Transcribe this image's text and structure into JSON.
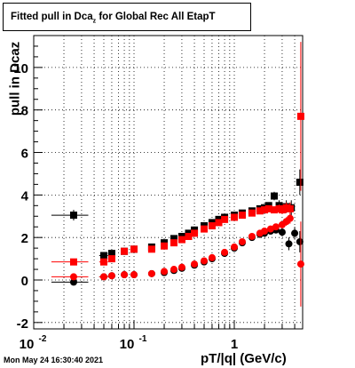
{
  "title": {
    "text": "Fitted pull in Dca",
    "sub": "z",
    "suffix": " for Global Rec All EtapT"
  },
  "datestamp": "Mon May 24 16:30:40 2021",
  "colors": {
    "series_black": "#000000",
    "series_red": "#ff0000",
    "grid": "#000000"
  },
  "chart_data": {
    "type": "scatter",
    "title": "Fitted pull in Dcaz for Global Rec All EtapT",
    "xlabel": "pT/|q| (GeV/c)",
    "ylabel": "pull in Dcaz",
    "xscale": "log",
    "xlim": [
      0.01,
      4.8
    ],
    "ylim": [
      -2.3,
      11.5
    ],
    "grid": true,
    "x_ticks": [
      {
        "value": 0.01,
        "base": "10",
        "exp": "-2"
      },
      {
        "value": 0.1,
        "base": "10",
        "exp": "-1"
      },
      {
        "value": 1,
        "base": "1",
        "exp": ""
      }
    ],
    "y_ticks": [
      -2,
      0,
      2,
      4,
      6,
      8,
      10
    ],
    "series": [
      {
        "marker": "square",
        "color": "#000000",
        "x": [
          0.025,
          0.05,
          0.06,
          0.08,
          0.1,
          0.15,
          0.2,
          0.25,
          0.3,
          0.35,
          0.4,
          0.5,
          0.6,
          0.7,
          0.8,
          1.0,
          1.2,
          1.5,
          1.8,
          2.0,
          2.2,
          2.5,
          2.8,
          3.0,
          3.3,
          3.7,
          4.5
        ],
        "y": [
          3.05,
          1.15,
          1.25,
          1.35,
          1.45,
          1.55,
          1.75,
          1.95,
          2.05,
          2.2,
          2.35,
          2.55,
          2.7,
          2.85,
          2.95,
          3.05,
          3.15,
          3.25,
          3.35,
          3.4,
          3.5,
          3.95,
          3.5,
          3.4,
          3.45,
          3.4,
          4.6
        ],
        "xerr": [
          0.01,
          0.005,
          0.005,
          0.005,
          0.005,
          0.01,
          0.01,
          0.01,
          0.01,
          0.01,
          0.01,
          0.02,
          0.02,
          0.02,
          0.02,
          0.03,
          0.03,
          0.05,
          0.05,
          0.05,
          0.05,
          0.05,
          0.05,
          0.05,
          0.05,
          0.1,
          0.1
        ],
        "yerr": [
          0.25,
          0.1,
          0.1,
          0.08,
          0.08,
          0.06,
          0.06,
          0.06,
          0.06,
          0.06,
          0.06,
          0.06,
          0.06,
          0.08,
          0.08,
          0.08,
          0.1,
          0.1,
          0.12,
          0.12,
          0.15,
          0.2,
          0.25,
          0.25,
          0.3,
          0.35,
          0.6
        ]
      },
      {
        "marker": "circle",
        "color": "#000000",
        "x": [
          0.025,
          0.05,
          0.06,
          0.08,
          0.1,
          0.15,
          0.2,
          0.25,
          0.3,
          0.4,
          0.5,
          0.6,
          0.8,
          1.0,
          1.2,
          1.5,
          1.8,
          2.0,
          2.3,
          2.6,
          3.0,
          3.5,
          4.0,
          4.5
        ],
        "y": [
          -0.1,
          0.15,
          0.2,
          0.25,
          0.25,
          0.3,
          0.35,
          0.45,
          0.55,
          0.7,
          0.85,
          1.0,
          1.25,
          1.5,
          1.75,
          2.0,
          2.15,
          2.2,
          2.3,
          2.35,
          2.25,
          1.7,
          2.2,
          1.8
        ],
        "xerr": [
          0.01,
          0.005,
          0.005,
          0.005,
          0.005,
          0.01,
          0.01,
          0.01,
          0.01,
          0.01,
          0.02,
          0.02,
          0.02,
          0.03,
          0.03,
          0.05,
          0.05,
          0.05,
          0.05,
          0.05,
          0.05,
          0.1,
          0.1,
          0.1
        ],
        "yerr": [
          0.1,
          0.05,
          0.05,
          0.05,
          0.05,
          0.04,
          0.04,
          0.04,
          0.04,
          0.04,
          0.04,
          0.05,
          0.05,
          0.05,
          0.06,
          0.08,
          0.1,
          0.1,
          0.12,
          0.15,
          0.2,
          0.3,
          0.3,
          0.5
        ]
      },
      {
        "marker": "square",
        "color": "#ff0000",
        "x": [
          0.025,
          0.05,
          0.06,
          0.08,
          0.1,
          0.15,
          0.2,
          0.25,
          0.3,
          0.35,
          0.4,
          0.5,
          0.6,
          0.7,
          0.8,
          1.0,
          1.2,
          1.5,
          1.8,
          2.0,
          2.2,
          2.5,
          2.8,
          3.0,
          3.3,
          3.6,
          4.6
        ],
        "y": [
          0.85,
          0.85,
          1.0,
          1.35,
          1.45,
          1.45,
          1.6,
          1.75,
          1.9,
          2.05,
          2.2,
          2.4,
          2.55,
          2.7,
          2.85,
          2.95,
          3.05,
          3.15,
          3.25,
          3.3,
          3.35,
          3.3,
          3.35,
          3.3,
          3.4,
          3.35,
          7.7
        ],
        "xerr": [
          0.01,
          0.005,
          0.005,
          0.005,
          0.005,
          0.01,
          0.01,
          0.01,
          0.01,
          0.01,
          0.01,
          0.02,
          0.02,
          0.02,
          0.02,
          0.03,
          0.03,
          0.05,
          0.05,
          0.05,
          0.05,
          0.05,
          0.05,
          0.05,
          0.05,
          0.1,
          0.1
        ],
        "yerr": [
          0.1,
          0.1,
          0.1,
          0.08,
          0.08,
          0.06,
          0.06,
          0.06,
          0.06,
          0.06,
          0.06,
          0.06,
          0.06,
          0.08,
          0.08,
          0.08,
          0.1,
          0.1,
          0.12,
          0.12,
          0.15,
          0.15,
          0.2,
          0.2,
          0.25,
          0.3,
          3.5
        ]
      },
      {
        "marker": "circle",
        "color": "#ff0000",
        "x": [
          0.025,
          0.05,
          0.06,
          0.08,
          0.1,
          0.15,
          0.2,
          0.25,
          0.3,
          0.4,
          0.5,
          0.6,
          0.8,
          1.0,
          1.2,
          1.5,
          1.8,
          2.0,
          2.3,
          2.6,
          3.0,
          3.3,
          3.6,
          4.6
        ],
        "y": [
          0.15,
          0.15,
          0.2,
          0.25,
          0.25,
          0.3,
          0.4,
          0.5,
          0.6,
          0.75,
          0.9,
          1.05,
          1.3,
          1.55,
          1.8,
          2.05,
          2.2,
          2.3,
          2.4,
          2.5,
          2.6,
          2.75,
          2.9,
          0.75
        ],
        "xerr": [
          0.01,
          0.005,
          0.005,
          0.005,
          0.005,
          0.01,
          0.01,
          0.01,
          0.01,
          0.01,
          0.02,
          0.02,
          0.02,
          0.03,
          0.03,
          0.05,
          0.05,
          0.05,
          0.05,
          0.05,
          0.05,
          0.05,
          0.1,
          0.1
        ],
        "yerr": [
          0.08,
          0.05,
          0.05,
          0.05,
          0.05,
          0.04,
          0.04,
          0.04,
          0.04,
          0.04,
          0.04,
          0.05,
          0.05,
          0.05,
          0.06,
          0.08,
          0.1,
          0.1,
          0.12,
          0.15,
          0.15,
          0.2,
          0.25,
          2.0
        ]
      }
    ]
  }
}
